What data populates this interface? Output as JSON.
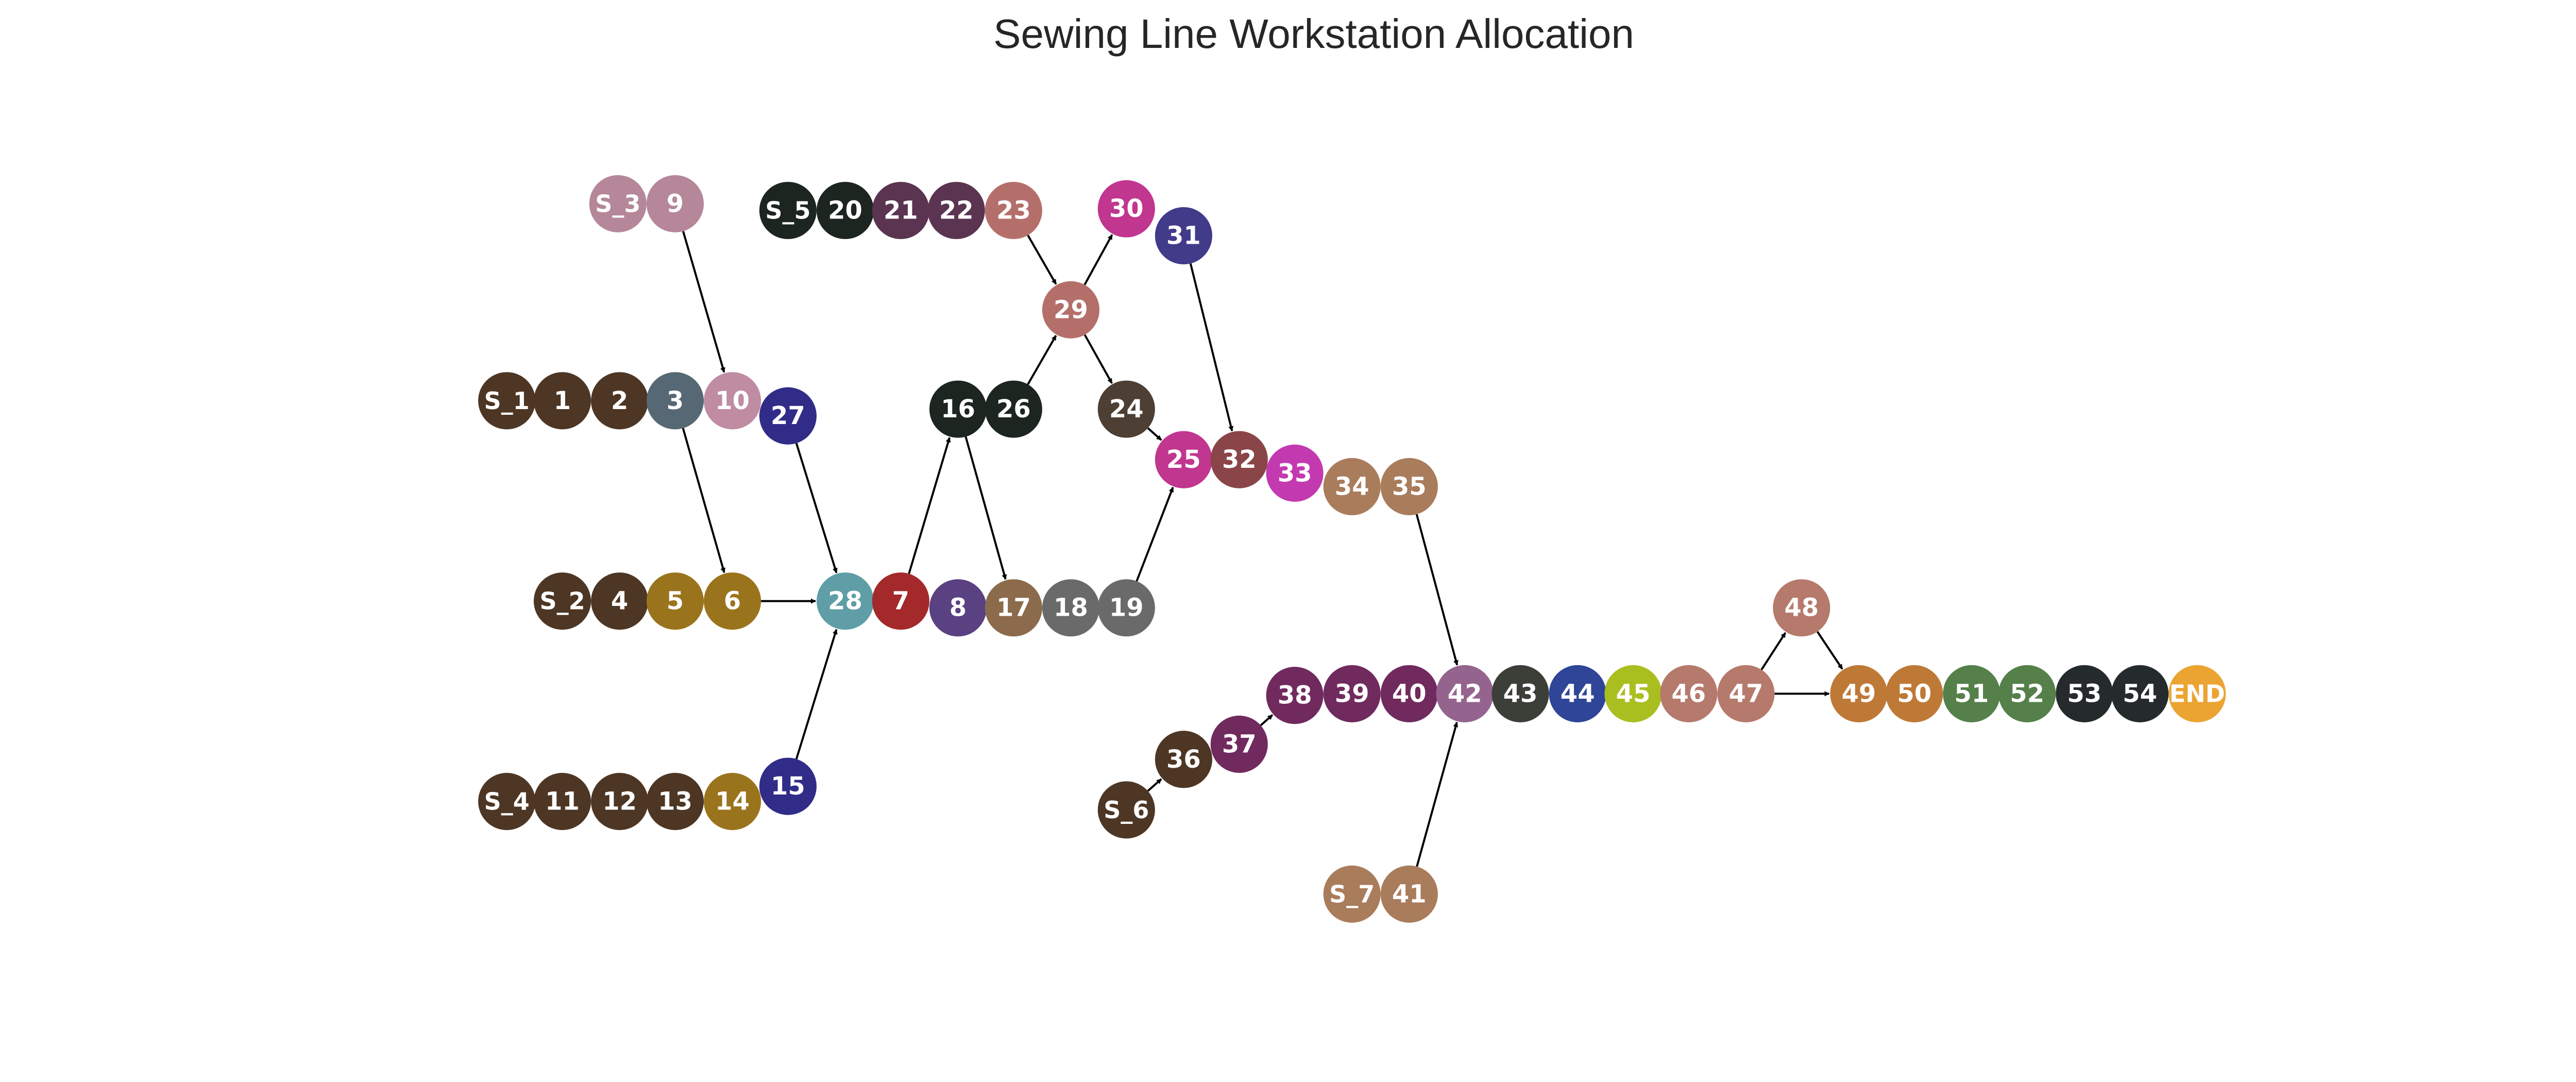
{
  "title": "Sewing Line Workstation Allocation",
  "colors": {
    "edge": "#000000",
    "background": "#ffffff",
    "label": "#ffffff"
  },
  "nodes": [
    {
      "id": "S_3",
      "color": "#b58799"
    },
    {
      "id": "9",
      "color": "#b58799"
    },
    {
      "id": "S_5",
      "color": "#1c2520"
    },
    {
      "id": "20",
      "color": "#1c2520"
    },
    {
      "id": "21",
      "color": "#5a3450"
    },
    {
      "id": "22",
      "color": "#5a3450"
    },
    {
      "id": "23",
      "color": "#b56f6a"
    },
    {
      "id": "30",
      "color": "#c1368f"
    },
    {
      "id": "31",
      "color": "#413b8a"
    },
    {
      "id": "29",
      "color": "#b56f6a"
    },
    {
      "id": "S_1",
      "color": "#4d3624"
    },
    {
      "id": "1",
      "color": "#4d3624"
    },
    {
      "id": "2",
      "color": "#4d3624"
    },
    {
      "id": "3",
      "color": "#566873"
    },
    {
      "id": "10",
      "color": "#c08ca2"
    },
    {
      "id": "27",
      "color": "#302c88"
    },
    {
      "id": "16",
      "color": "#1c2520"
    },
    {
      "id": "26",
      "color": "#1c2520"
    },
    {
      "id": "24",
      "color": "#4d3f33"
    },
    {
      "id": "25",
      "color": "#c1368f"
    },
    {
      "id": "32",
      "color": "#8a4548"
    },
    {
      "id": "33",
      "color": "#c33ab0"
    },
    {
      "id": "34",
      "color": "#a97c5c"
    },
    {
      "id": "35",
      "color": "#a97c5c"
    },
    {
      "id": "S_2",
      "color": "#4d3624"
    },
    {
      "id": "4",
      "color": "#4d3624"
    },
    {
      "id": "5",
      "color": "#9a741d"
    },
    {
      "id": "6",
      "color": "#9a741d"
    },
    {
      "id": "28",
      "color": "#5f9ea6"
    },
    {
      "id": "7",
      "color": "#a3292a"
    },
    {
      "id": "8",
      "color": "#5a4181"
    },
    {
      "id": "17",
      "color": "#8b6b4b"
    },
    {
      "id": "18",
      "color": "#6a6a6a"
    },
    {
      "id": "19",
      "color": "#6a6a6a"
    },
    {
      "id": "48",
      "color": "#b57a6c"
    },
    {
      "id": "38",
      "color": "#702a5e"
    },
    {
      "id": "39",
      "color": "#702a5e"
    },
    {
      "id": "40",
      "color": "#702a5e"
    },
    {
      "id": "42",
      "color": "#95648e"
    },
    {
      "id": "43",
      "color": "#3c3e38"
    },
    {
      "id": "44",
      "color": "#2f4597"
    },
    {
      "id": "45",
      "color": "#a9bf20"
    },
    {
      "id": "46",
      "color": "#b57a6c"
    },
    {
      "id": "47",
      "color": "#b57a6c"
    },
    {
      "id": "49",
      "color": "#bf7936"
    },
    {
      "id": "50",
      "color": "#bf7936"
    },
    {
      "id": "51",
      "color": "#55804a"
    },
    {
      "id": "52",
      "color": "#55804a"
    },
    {
      "id": "53",
      "color": "#252b2d"
    },
    {
      "id": "54",
      "color": "#252b2d"
    },
    {
      "id": "END",
      "color": "#eba432"
    },
    {
      "id": "36",
      "color": "#4d3624"
    },
    {
      "id": "37",
      "color": "#702a5e"
    },
    {
      "id": "S_6",
      "color": "#4d3624"
    },
    {
      "id": "S_4",
      "color": "#4d3624"
    },
    {
      "id": "11",
      "color": "#4d3624"
    },
    {
      "id": "12",
      "color": "#4d3624"
    },
    {
      "id": "13",
      "color": "#4d3624"
    },
    {
      "id": "14",
      "color": "#9a741d"
    },
    {
      "id": "15",
      "color": "#302c88"
    },
    {
      "id": "S_7",
      "color": "#a97c5c"
    },
    {
      "id": "41",
      "color": "#a97c5c"
    }
  ],
  "edges": [
    [
      "S_3",
      "9"
    ],
    [
      "9",
      "10"
    ],
    [
      "S_5",
      "20"
    ],
    [
      "20",
      "21"
    ],
    [
      "21",
      "22"
    ],
    [
      "22",
      "23"
    ],
    [
      "23",
      "29"
    ],
    [
      "29",
      "30"
    ],
    [
      "30",
      "31"
    ],
    [
      "31",
      "32"
    ],
    [
      "29",
      "24"
    ],
    [
      "24",
      "25"
    ],
    [
      "S_1",
      "1"
    ],
    [
      "1",
      "2"
    ],
    [
      "2",
      "3"
    ],
    [
      "3",
      "10"
    ],
    [
      "3",
      "6"
    ],
    [
      "10",
      "27"
    ],
    [
      "27",
      "28"
    ],
    [
      "S_2",
      "4"
    ],
    [
      "4",
      "5"
    ],
    [
      "5",
      "6"
    ],
    [
      "6",
      "28"
    ],
    [
      "28",
      "7"
    ],
    [
      "7",
      "16"
    ],
    [
      "7",
      "8"
    ],
    [
      "16",
      "26"
    ],
    [
      "16",
      "17"
    ],
    [
      "26",
      "29"
    ],
    [
      "8",
      "17"
    ],
    [
      "17",
      "18"
    ],
    [
      "18",
      "19"
    ],
    [
      "19",
      "25"
    ],
    [
      "25",
      "32"
    ],
    [
      "32",
      "33"
    ],
    [
      "33",
      "34"
    ],
    [
      "34",
      "35"
    ],
    [
      "35",
      "42"
    ],
    [
      "S_4",
      "11"
    ],
    [
      "11",
      "12"
    ],
    [
      "12",
      "13"
    ],
    [
      "13",
      "14"
    ],
    [
      "14",
      "15"
    ],
    [
      "15",
      "28"
    ],
    [
      "S_6",
      "36"
    ],
    [
      "36",
      "37"
    ],
    [
      "37",
      "38"
    ],
    [
      "38",
      "39"
    ],
    [
      "39",
      "40"
    ],
    [
      "40",
      "42"
    ],
    [
      "S_7",
      "41"
    ],
    [
      "41",
      "42"
    ],
    [
      "42",
      "43"
    ],
    [
      "43",
      "44"
    ],
    [
      "44",
      "45"
    ],
    [
      "45",
      "46"
    ],
    [
      "46",
      "47"
    ],
    [
      "47",
      "48"
    ],
    [
      "47",
      "49"
    ],
    [
      "48",
      "49"
    ],
    [
      "49",
      "50"
    ],
    [
      "50",
      "51"
    ],
    [
      "51",
      "52"
    ],
    [
      "52",
      "53"
    ],
    [
      "53",
      "54"
    ],
    [
      "54",
      "END"
    ]
  ]
}
